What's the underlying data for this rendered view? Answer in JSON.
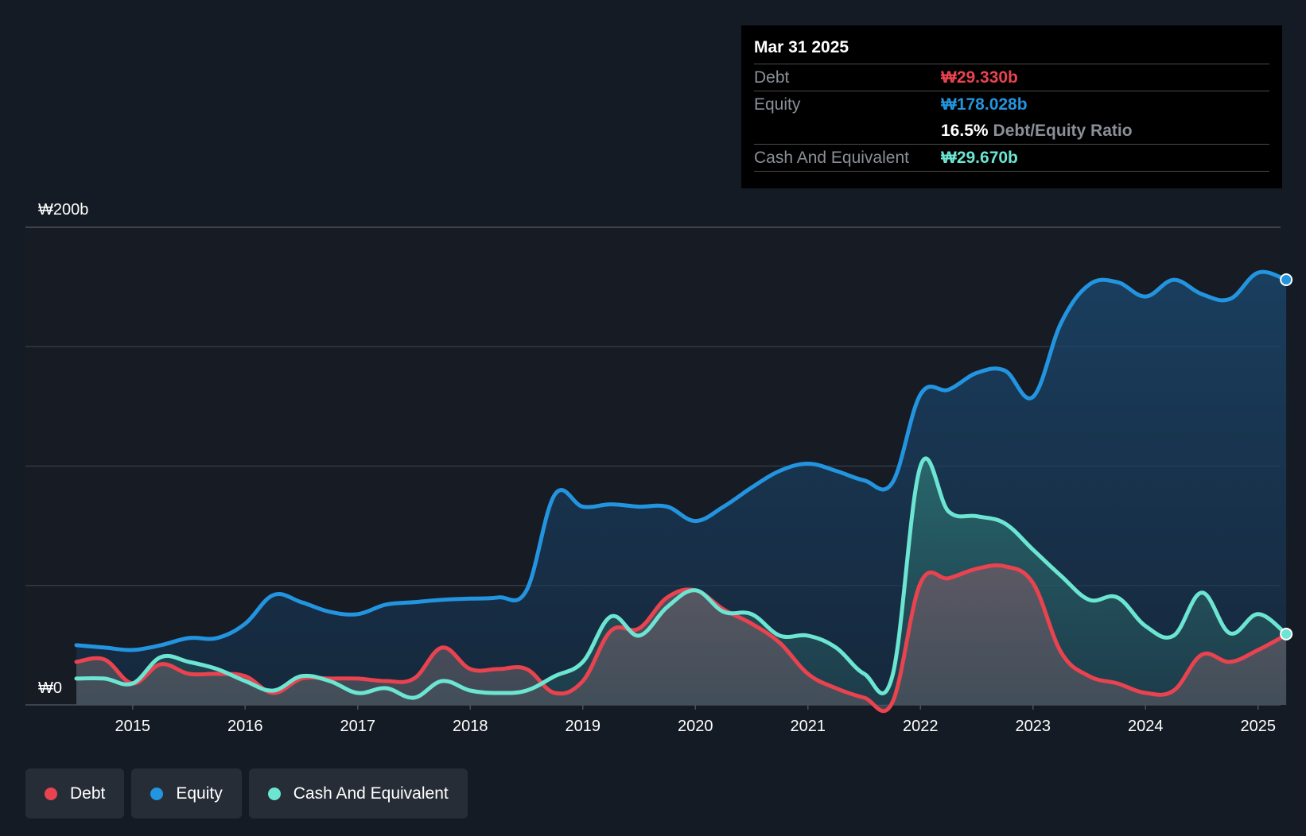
{
  "colors": {
    "debt": "#e8434f",
    "equity": "#2394df",
    "cash": "#6ce5d2",
    "background": "#151b24",
    "grid": "#333a44"
  },
  "tooltip": {
    "date": "Mar 31 2025",
    "debt_label": "Debt",
    "debt_value": "₩29.330b",
    "equity_label": "Equity",
    "equity_value": "₩178.028b",
    "ratio_value": "16.5%",
    "ratio_label": "Debt/Equity Ratio",
    "cash_label": "Cash And Equivalent",
    "cash_value": "₩29.670b"
  },
  "legend": [
    {
      "label": "Debt",
      "color": "#e8434f"
    },
    {
      "label": "Equity",
      "color": "#2394df"
    },
    {
      "label": "Cash And Equivalent",
      "color": "#6ce5d2"
    }
  ],
  "chart_data": {
    "type": "area",
    "title": "",
    "xlabel": "",
    "ylabel": "",
    "y_unit": "₩ billions",
    "ylim": [
      0,
      200
    ],
    "y_tick_labels": [
      {
        "value": 200,
        "label": "₩200b"
      },
      {
        "value": 0,
        "label": "₩0"
      }
    ],
    "y_gridlines": [
      0,
      50,
      100,
      150,
      200
    ],
    "xlim": [
      2014.5,
      2025.25
    ],
    "x_ticks": [
      2015,
      2016,
      2017,
      2018,
      2019,
      2020,
      2021,
      2022,
      2023,
      2024,
      2025
    ],
    "legend_position": "bottom-left",
    "series": [
      {
        "name": "Debt",
        "color": "#e8434f",
        "points": [
          [
            2014.5,
            18
          ],
          [
            2014.75,
            19
          ],
          [
            2015.0,
            9
          ],
          [
            2015.25,
            17
          ],
          [
            2015.5,
            13
          ],
          [
            2015.75,
            13
          ],
          [
            2016.0,
            12
          ],
          [
            2016.25,
            5
          ],
          [
            2016.5,
            11
          ],
          [
            2016.75,
            11
          ],
          [
            2017.0,
            11
          ],
          [
            2017.25,
            10
          ],
          [
            2017.5,
            11
          ],
          [
            2017.75,
            24
          ],
          [
            2018.0,
            15
          ],
          [
            2018.25,
            15
          ],
          [
            2018.5,
            15
          ],
          [
            2018.75,
            5
          ],
          [
            2019.0,
            10
          ],
          [
            2019.25,
            31
          ],
          [
            2019.5,
            32
          ],
          [
            2019.75,
            45
          ],
          [
            2020.0,
            48
          ],
          [
            2020.25,
            40
          ],
          [
            2020.5,
            34
          ],
          [
            2020.75,
            26
          ],
          [
            2021.0,
            13
          ],
          [
            2021.25,
            7
          ],
          [
            2021.5,
            3
          ],
          [
            2021.75,
            1
          ],
          [
            2022.0,
            51
          ],
          [
            2022.25,
            53
          ],
          [
            2022.5,
            57
          ],
          [
            2022.75,
            58
          ],
          [
            2023.0,
            51
          ],
          [
            2023.25,
            22
          ],
          [
            2023.5,
            12
          ],
          [
            2023.75,
            9
          ],
          [
            2024.0,
            5
          ],
          [
            2024.25,
            6
          ],
          [
            2024.5,
            21
          ],
          [
            2024.75,
            18
          ],
          [
            2025.0,
            23
          ],
          [
            2025.25,
            29.33
          ]
        ]
      },
      {
        "name": "Equity",
        "color": "#2394df",
        "points": [
          [
            2014.5,
            25
          ],
          [
            2014.75,
            24
          ],
          [
            2015.0,
            23
          ],
          [
            2015.25,
            25
          ],
          [
            2015.5,
            28
          ],
          [
            2015.75,
            28
          ],
          [
            2016.0,
            34
          ],
          [
            2016.25,
            46
          ],
          [
            2016.5,
            43
          ],
          [
            2016.75,
            39
          ],
          [
            2017.0,
            38
          ],
          [
            2017.25,
            42
          ],
          [
            2017.5,
            43
          ],
          [
            2017.75,
            44
          ],
          [
            2018.0,
            44.5
          ],
          [
            2018.25,
            45
          ],
          [
            2018.5,
            48
          ],
          [
            2018.75,
            88
          ],
          [
            2019.0,
            83
          ],
          [
            2019.25,
            84
          ],
          [
            2019.5,
            83
          ],
          [
            2019.75,
            83
          ],
          [
            2020.0,
            77
          ],
          [
            2020.25,
            83
          ],
          [
            2020.5,
            91
          ],
          [
            2020.75,
            98
          ],
          [
            2021.0,
            101
          ],
          [
            2021.25,
            98
          ],
          [
            2021.5,
            94
          ],
          [
            2021.75,
            93
          ],
          [
            2022.0,
            130
          ],
          [
            2022.25,
            132
          ],
          [
            2022.5,
            139
          ],
          [
            2022.75,
            140
          ],
          [
            2023.0,
            129
          ],
          [
            2023.25,
            160
          ],
          [
            2023.5,
            176
          ],
          [
            2023.75,
            177
          ],
          [
            2024.0,
            171
          ],
          [
            2024.25,
            178
          ],
          [
            2024.5,
            172
          ],
          [
            2024.75,
            170
          ],
          [
            2025.0,
            181
          ],
          [
            2025.25,
            178.028
          ]
        ]
      },
      {
        "name": "Cash And Equivalent",
        "color": "#6ce5d2",
        "points": [
          [
            2014.5,
            11
          ],
          [
            2014.75,
            11
          ],
          [
            2015.0,
            9
          ],
          [
            2015.25,
            20
          ],
          [
            2015.5,
            18
          ],
          [
            2015.75,
            15
          ],
          [
            2016.0,
            10
          ],
          [
            2016.25,
            6
          ],
          [
            2016.5,
            12
          ],
          [
            2016.75,
            10
          ],
          [
            2017.0,
            5
          ],
          [
            2017.25,
            7
          ],
          [
            2017.5,
            3
          ],
          [
            2017.75,
            10
          ],
          [
            2018.0,
            6
          ],
          [
            2018.25,
            5
          ],
          [
            2018.5,
            6
          ],
          [
            2018.75,
            12
          ],
          [
            2019.0,
            18
          ],
          [
            2019.25,
            37
          ],
          [
            2019.5,
            29
          ],
          [
            2019.75,
            41
          ],
          [
            2020.0,
            48
          ],
          [
            2020.25,
            39
          ],
          [
            2020.5,
            38
          ],
          [
            2020.75,
            29
          ],
          [
            2021.0,
            29
          ],
          [
            2021.25,
            24
          ],
          [
            2021.5,
            13
          ],
          [
            2021.75,
            12
          ],
          [
            2022.0,
            100
          ],
          [
            2022.25,
            81
          ],
          [
            2022.5,
            79
          ],
          [
            2022.75,
            76
          ],
          [
            2023.0,
            65
          ],
          [
            2023.25,
            54
          ],
          [
            2023.5,
            44
          ],
          [
            2023.75,
            45
          ],
          [
            2024.0,
            33
          ],
          [
            2024.25,
            29
          ],
          [
            2024.5,
            47
          ],
          [
            2024.75,
            30
          ],
          [
            2025.0,
            38
          ],
          [
            2025.25,
            29.67
          ]
        ]
      }
    ]
  }
}
